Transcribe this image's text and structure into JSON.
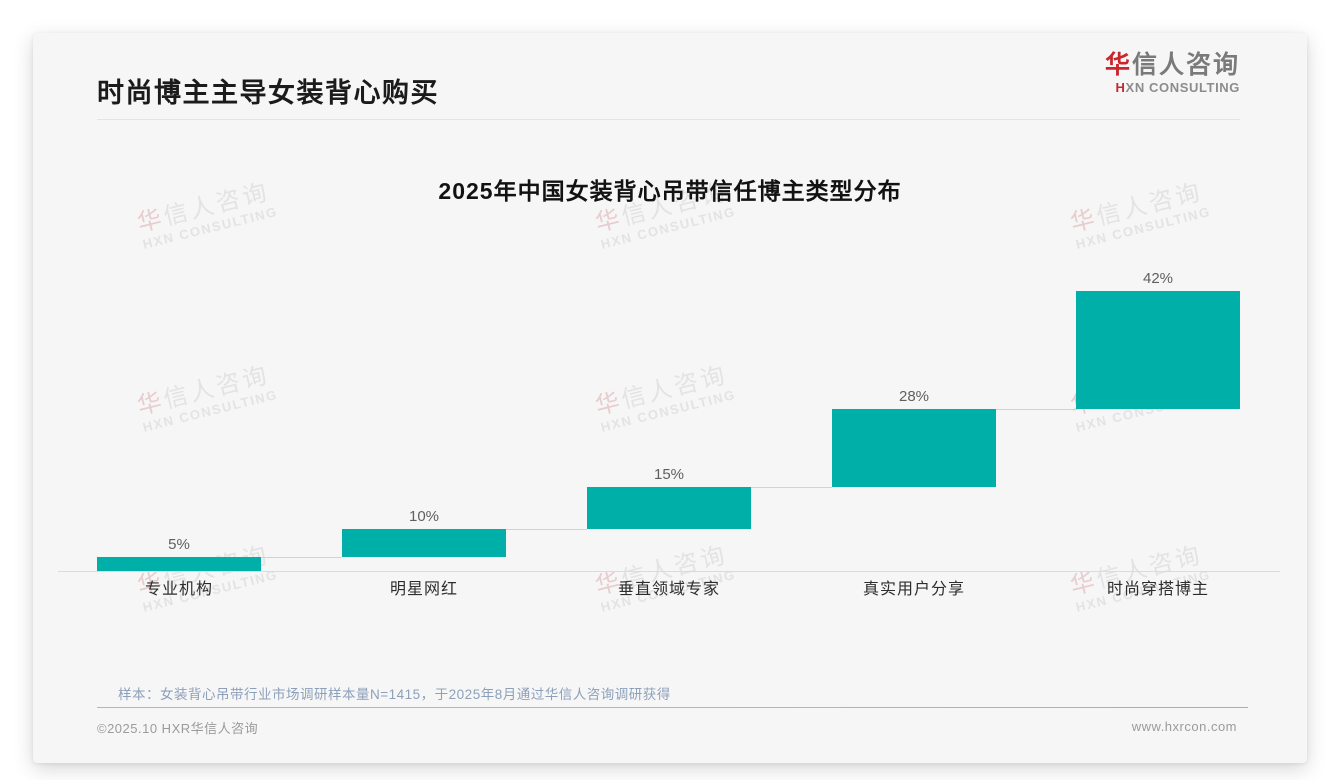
{
  "header": {
    "title": "时尚博主主导女装背心购买",
    "logo": {
      "cn_accent": "华",
      "cn_rest": "信人咨询",
      "en_accent": "H",
      "en_rest": "XN CONSULTING"
    }
  },
  "chart_data": {
    "type": "bar",
    "subtype": "waterfall-steps",
    "title": "2025年中国女装背心吊带信任博主类型分布",
    "categories": [
      "专业机构",
      "明星网红",
      "垂直领域专家",
      "真实用户分享",
      "时尚穿搭博主"
    ],
    "values": [
      5,
      10,
      15,
      28,
      42
    ],
    "labels": [
      "5%",
      "10%",
      "15%",
      "28%",
      "42%"
    ],
    "unit": "%",
    "ylim": [
      0,
      100
    ],
    "cumulative": true,
    "bar_color": "#00b0a8",
    "grid": false,
    "legend": false
  },
  "watermark": {
    "line1_accent": "华",
    "line1_rest": "信人咨询",
    "line2": "HXN CONSULTING"
  },
  "footnote": "样本：女装背心吊带行业市场调研样本量N=1415，于2025年8月通过华信人咨询调研获得",
  "footer": {
    "copyright": "©2025.10 HXR华信人咨询",
    "website": "www.hxrcon.com"
  }
}
